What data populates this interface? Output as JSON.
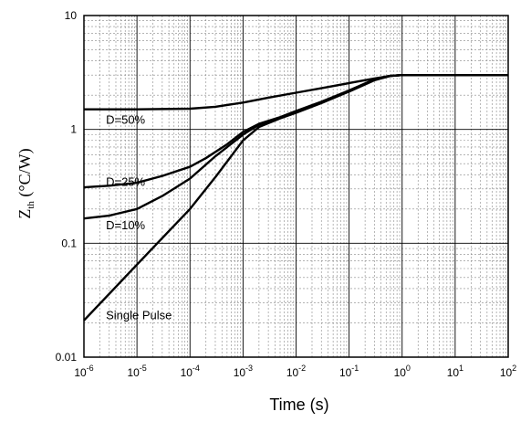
{
  "chart_data": {
    "type": "line",
    "xlabel": "Time (s)",
    "ylabel": {
      "main": "Z",
      "sub": "th",
      "unit": " (°C/W)"
    },
    "x_scale": "log",
    "y_scale": "log",
    "xlim": [
      1e-06,
      100
    ],
    "ylim": [
      0.01,
      10
    ],
    "grid": true,
    "x_ticks": [
      {
        "base": "10",
        "exp": "-6"
      },
      {
        "base": "10",
        "exp": "-5"
      },
      {
        "base": "10",
        "exp": "-4"
      },
      {
        "base": "10",
        "exp": "-3"
      },
      {
        "base": "10",
        "exp": "-2"
      },
      {
        "base": "10",
        "exp": "-1"
      },
      {
        "base": "10",
        "exp": "0"
      },
      {
        "base": "10",
        "exp": "1"
      },
      {
        "base": "10",
        "exp": "2"
      }
    ],
    "y_ticks": [
      "10",
      "1",
      "0.1",
      "0.01"
    ],
    "series": [
      {
        "name": "D=50%",
        "points": [
          [
            1e-06,
            1.5
          ],
          [
            1e-05,
            1.5
          ],
          [
            0.0001,
            1.52
          ],
          [
            0.0003,
            1.58
          ],
          [
            0.001,
            1.72
          ],
          [
            0.003,
            1.9
          ],
          [
            0.01,
            2.1
          ],
          [
            0.03,
            2.3
          ],
          [
            0.1,
            2.55
          ],
          [
            0.3,
            2.8
          ],
          [
            0.6,
            2.95
          ],
          [
            1,
            3.0
          ],
          [
            10,
            3.0
          ],
          [
            100,
            3.0
          ]
        ]
      },
      {
        "name": "D=25%",
        "points": [
          [
            1e-06,
            0.31
          ],
          [
            3e-06,
            0.32
          ],
          [
            1e-05,
            0.34
          ],
          [
            3e-05,
            0.39
          ],
          [
            0.0001,
            0.47
          ],
          [
            0.0002,
            0.56
          ],
          [
            0.0005,
            0.74
          ],
          [
            0.001,
            0.95
          ],
          [
            0.002,
            1.12
          ],
          [
            0.005,
            1.28
          ],
          [
            0.01,
            1.45
          ],
          [
            0.03,
            1.75
          ],
          [
            0.1,
            2.2
          ],
          [
            0.3,
            2.75
          ],
          [
            0.6,
            2.95
          ],
          [
            1,
            3.0
          ],
          [
            100,
            3.0
          ]
        ]
      },
      {
        "name": "D=10%",
        "points": [
          [
            1e-06,
            0.165
          ],
          [
            3e-06,
            0.175
          ],
          [
            1e-05,
            0.2
          ],
          [
            3e-05,
            0.26
          ],
          [
            0.0001,
            0.37
          ],
          [
            0.0003,
            0.58
          ],
          [
            0.001,
            0.9
          ],
          [
            0.002,
            1.1
          ],
          [
            0.005,
            1.27
          ],
          [
            0.01,
            1.42
          ],
          [
            0.03,
            1.72
          ],
          [
            0.1,
            2.18
          ],
          [
            0.3,
            2.72
          ],
          [
            0.6,
            2.95
          ],
          [
            1,
            3.0
          ],
          [
            100,
            3.0
          ]
        ]
      },
      {
        "name": "Single Pulse",
        "points": [
          [
            1e-06,
            0.021
          ],
          [
            1e-05,
            0.065
          ],
          [
            0.0001,
            0.2
          ],
          [
            0.0003,
            0.38
          ],
          [
            0.001,
            0.8
          ],
          [
            0.002,
            1.05
          ],
          [
            0.005,
            1.25
          ],
          [
            0.01,
            1.4
          ],
          [
            0.03,
            1.7
          ],
          [
            0.1,
            2.15
          ],
          [
            0.3,
            2.7
          ],
          [
            0.6,
            2.95
          ],
          [
            1,
            3.0
          ],
          [
            100,
            3.0
          ]
        ]
      }
    ],
    "annotations": [
      {
        "text": "D=50%",
        "x": 2.6e-06,
        "y": 1.12
      },
      {
        "text": "D=25%",
        "x": 2.6e-06,
        "y": 0.32
      },
      {
        "text": "D=10%",
        "x": 2.6e-06,
        "y": 0.133
      },
      {
        "text": "Single Pulse",
        "x": 2.6e-06,
        "y": 0.0215
      }
    ]
  }
}
